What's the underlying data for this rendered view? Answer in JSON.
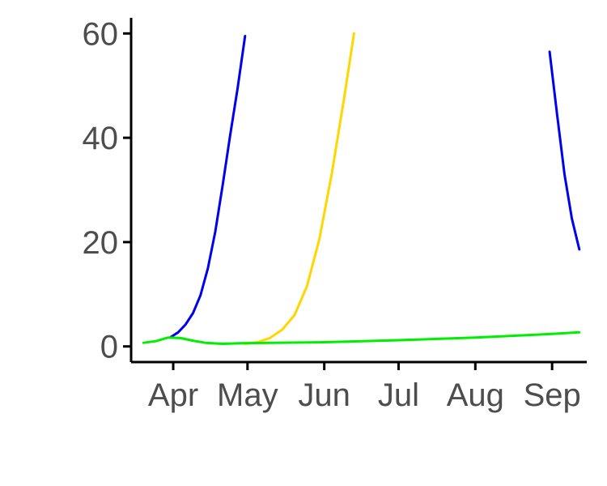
{
  "chart_data": {
    "type": "line",
    "title": "",
    "xlabel": "",
    "ylabel": "",
    "x_type": "date",
    "xlim": [
      "2020-03-15",
      "2020-09-15"
    ],
    "ylim": [
      -3,
      63
    ],
    "grid": false,
    "legend": "none",
    "x_ticks": [
      {
        "label": "Apr",
        "date": "2020-04-01"
      },
      {
        "label": "May",
        "date": "2020-05-01"
      },
      {
        "label": "Jun",
        "date": "2020-06-01"
      },
      {
        "label": "Jul",
        "date": "2020-07-01"
      },
      {
        "label": "Aug",
        "date": "2020-08-01"
      },
      {
        "label": "Sep",
        "date": "2020-09-01"
      }
    ],
    "y_ticks": [
      0,
      20,
      40,
      60
    ],
    "series": [
      {
        "color": "#0000ee",
        "segments": [
          [
            [
              "2020-03-31",
              1.8
            ],
            [
              "2020-04-03",
              2.7
            ],
            [
              "2020-04-06",
              4.2
            ],
            [
              "2020-04-09",
              6.4
            ],
            [
              "2020-04-12",
              9.8
            ],
            [
              "2020-04-15",
              15.0
            ],
            [
              "2020-04-18",
              22.0
            ],
            [
              "2020-04-21",
              31.0
            ],
            [
              "2020-04-24",
              40.5
            ],
            [
              "2020-04-27",
              49.5
            ],
            [
              "2020-04-30",
              59.5
            ]
          ],
          [
            [
              "2020-08-31",
              56.5
            ],
            [
              "2020-09-03",
              44.5
            ],
            [
              "2020-09-06",
              33.0
            ],
            [
              "2020-09-09",
              24.5
            ],
            [
              "2020-09-12",
              18.6
            ]
          ]
        ]
      },
      {
        "color": "#ffd700",
        "segments": [
          [
            [
              "2020-04-30",
              0.5
            ],
            [
              "2020-05-05",
              0.8
            ],
            [
              "2020-05-10",
              1.6
            ],
            [
              "2020-05-15",
              3.2
            ],
            [
              "2020-05-20",
              6.0
            ],
            [
              "2020-05-25",
              11.5
            ],
            [
              "2020-05-30",
              20.5
            ],
            [
              "2020-06-04",
              33.0
            ],
            [
              "2020-06-09",
              47.5
            ],
            [
              "2020-06-13",
              60.0
            ]
          ]
        ]
      },
      {
        "color": "#00ee00",
        "segments": [
          [
            [
              "2020-03-20",
              0.7
            ],
            [
              "2020-03-25",
              1.0
            ],
            [
              "2020-03-30",
              1.7
            ],
            [
              "2020-04-04",
              1.6
            ],
            [
              "2020-04-09",
              1.1
            ],
            [
              "2020-04-14",
              0.7
            ],
            [
              "2020-04-21",
              0.5
            ],
            [
              "2020-04-28",
              0.6
            ],
            [
              "2020-05-10",
              0.7
            ],
            [
              "2020-06-01",
              0.8
            ],
            [
              "2020-07-01",
              1.2
            ],
            [
              "2020-08-01",
              1.7
            ],
            [
              "2020-08-15",
              2.0
            ],
            [
              "2020-09-01",
              2.4
            ],
            [
              "2020-09-12",
              2.7
            ]
          ]
        ]
      }
    ]
  }
}
